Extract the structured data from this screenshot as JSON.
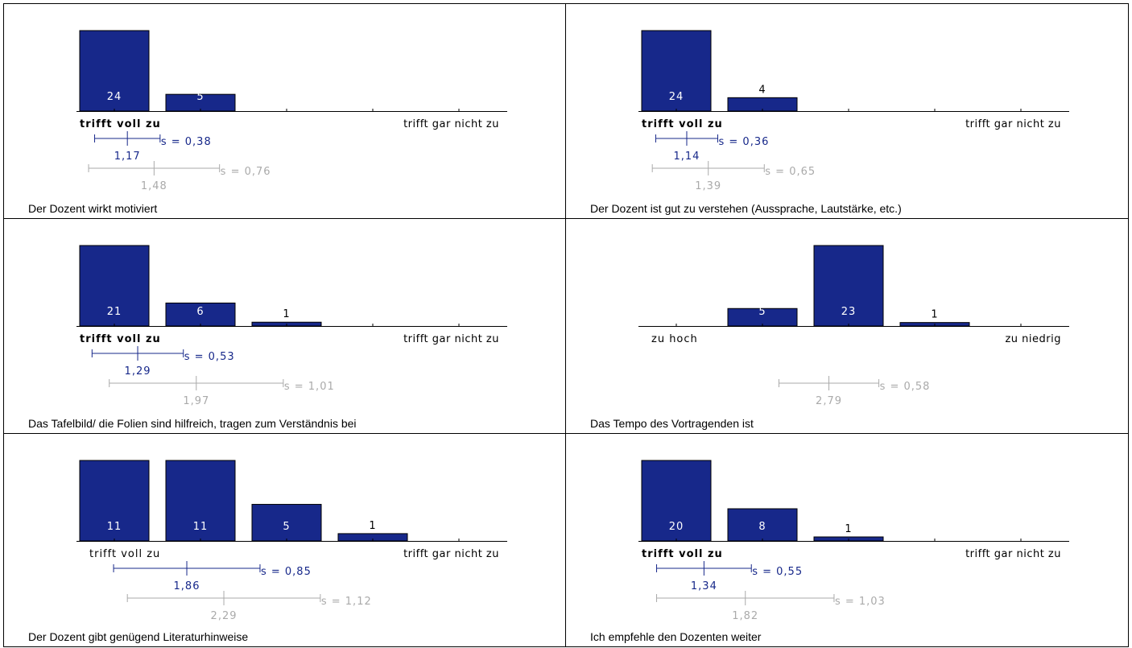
{
  "colors": {
    "bar": "#17288a",
    "mean": "#17288a",
    "reference": "#aaaaaa",
    "axis": "#000000"
  },
  "chart_data": [
    {
      "type": "bar",
      "title": "Der Dozent wirkt motiviert",
      "categories": [
        "1",
        "2",
        "3",
        "4",
        "5"
      ],
      "values": [
        24,
        5,
        0,
        0,
        0
      ],
      "left_label": "trifft voll zu",
      "right_label": "trifft  gar nicht zu",
      "left_bold": true,
      "ylim": [
        0,
        24
      ],
      "mean": {
        "value": 1.17,
        "sd": 0.38,
        "value_label": "1,17",
        "sd_label": "s = 0,38"
      },
      "reference": {
        "value": 1.48,
        "sd": 0.76,
        "value_label": "1,48",
        "sd_label": "s = 0,76"
      }
    },
    {
      "type": "bar",
      "title": "Der Dozent ist gut zu verstehen (Aussprache, Lautstärke, etc.)",
      "categories": [
        "1",
        "2",
        "3",
        "4",
        "5"
      ],
      "values": [
        24,
        4,
        0,
        0,
        0
      ],
      "left_label": "trifft voll zu",
      "right_label": "trifft  gar nicht zu",
      "left_bold": true,
      "ylim": [
        0,
        24
      ],
      "mean": {
        "value": 1.14,
        "sd": 0.36,
        "value_label": "1,14",
        "sd_label": "s = 0,36"
      },
      "reference": {
        "value": 1.39,
        "sd": 0.65,
        "value_label": "1,39",
        "sd_label": "s = 0,65"
      }
    },
    {
      "type": "bar",
      "title": "Das Tafelbild/ die Folien sind hilfreich, tragen zum Verständnis bei",
      "categories": [
        "1",
        "2",
        "3",
        "4",
        "5"
      ],
      "values": [
        21,
        6,
        1,
        0,
        0
      ],
      "left_label": "trifft voll zu",
      "right_label": "trifft  gar nicht zu",
      "left_bold": true,
      "ylim": [
        0,
        21
      ],
      "mean": {
        "value": 1.29,
        "sd": 0.53,
        "value_label": "1,29",
        "sd_label": "s = 0,53"
      },
      "reference": {
        "value": 1.97,
        "sd": 1.01,
        "value_label": "1,97",
        "sd_label": "s = 1,01"
      }
    },
    {
      "type": "bar",
      "title": "Das Tempo des Vortragenden ist",
      "categories": [
        "1",
        "2",
        "3",
        "4",
        "5"
      ],
      "values": [
        0,
        5,
        23,
        1,
        0
      ],
      "left_label": "zu hoch",
      "right_label": "zu niedrig",
      "left_bold": false,
      "ylim": [
        0,
        23
      ],
      "mean": null,
      "reference": {
        "value": 2.79,
        "sd": 0.58,
        "value_label": "2,79",
        "sd_label": "s = 0,58"
      }
    },
    {
      "type": "bar",
      "title": "Der Dozent gibt genügend Literaturhinweise",
      "categories": [
        "1",
        "2",
        "3",
        "4",
        "5"
      ],
      "values": [
        11,
        11,
        5,
        1,
        0
      ],
      "left_label": "trifft voll zu",
      "right_label": "trifft  gar nicht zu",
      "left_bold": false,
      "ylim": [
        0,
        11
      ],
      "mean": {
        "value": 1.86,
        "sd": 0.85,
        "value_label": "1,86",
        "sd_label": "s = 0,85"
      },
      "reference": {
        "value": 2.29,
        "sd": 1.12,
        "value_label": "2,29",
        "sd_label": "s = 1,12"
      }
    },
    {
      "type": "bar",
      "title": "Ich empfehle den Dozenten weiter",
      "categories": [
        "1",
        "2",
        "3",
        "4",
        "5"
      ],
      "values": [
        20,
        8,
        1,
        0,
        0
      ],
      "left_label": "trifft voll zu",
      "right_label": "trifft  gar nicht zu",
      "left_bold": true,
      "ylim": [
        0,
        20
      ],
      "mean": {
        "value": 1.34,
        "sd": 0.55,
        "value_label": "1,34",
        "sd_label": "s = 0,55"
      },
      "reference": {
        "value": 1.82,
        "sd": 1.03,
        "value_label": "1,82",
        "sd_label": "s = 1,03"
      }
    }
  ]
}
